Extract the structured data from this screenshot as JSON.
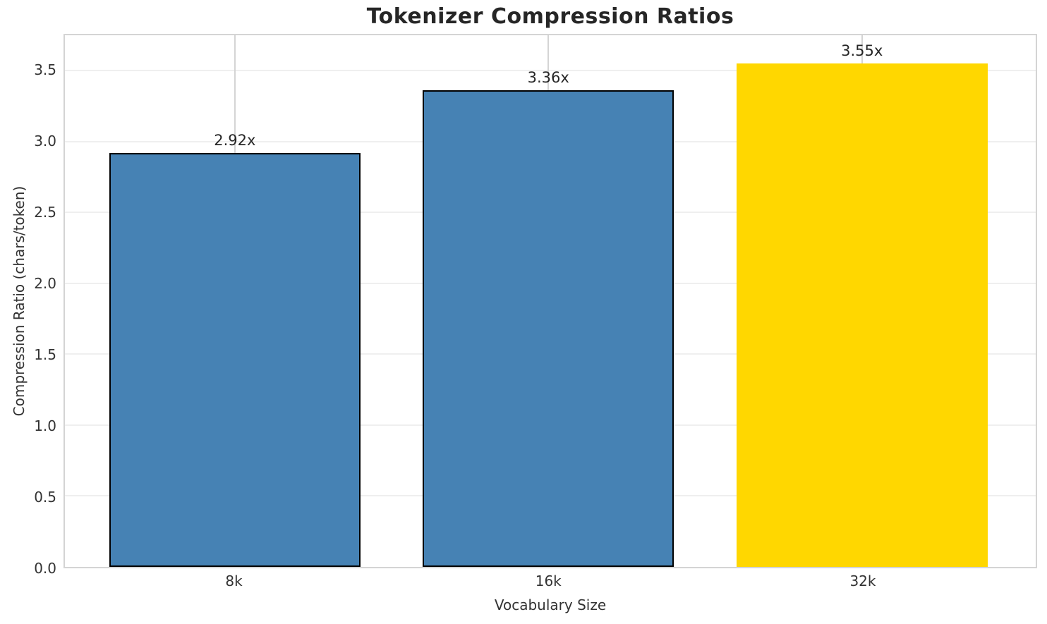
{
  "chart_data": {
    "type": "bar",
    "title": "Tokenizer Compression Ratios",
    "xlabel": "Vocabulary Size",
    "ylabel": "Compression Ratio (chars/token)",
    "categories": [
      "8k",
      "16k",
      "32k"
    ],
    "values": [
      2.92,
      3.36,
      3.55
    ],
    "bar_labels": [
      "2.92x",
      "3.36x",
      "3.55x"
    ],
    "bar_colors": [
      "#4682B4",
      "#4682B4",
      "#FFD700"
    ],
    "bar_edge_colors": [
      "#000000",
      "#000000",
      "none"
    ],
    "ylim": [
      0,
      3.75
    ],
    "yticks": [
      0.0,
      0.5,
      1.0,
      1.5,
      2.0,
      2.5,
      3.0,
      3.5
    ],
    "ytick_labels": [
      "0.0",
      "0.5",
      "1.0",
      "1.5",
      "2.0",
      "2.5",
      "3.0",
      "3.5"
    ],
    "grid": "horizontal-light and vertical-at-category-centers",
    "legend": "none"
  },
  "colors": {
    "background": "#ffffff",
    "title_text": "#262626",
    "tick_text": "#333333",
    "axis_label_text": "#333333",
    "bar_label_text": "#262626",
    "spine": "#d4d4d4",
    "h_grid": "#efefef",
    "v_grid": "#d4d4d4",
    "bar_blue": "#4682B4",
    "bar_gold": "#FFD700",
    "bar_edge": "#000000"
  }
}
